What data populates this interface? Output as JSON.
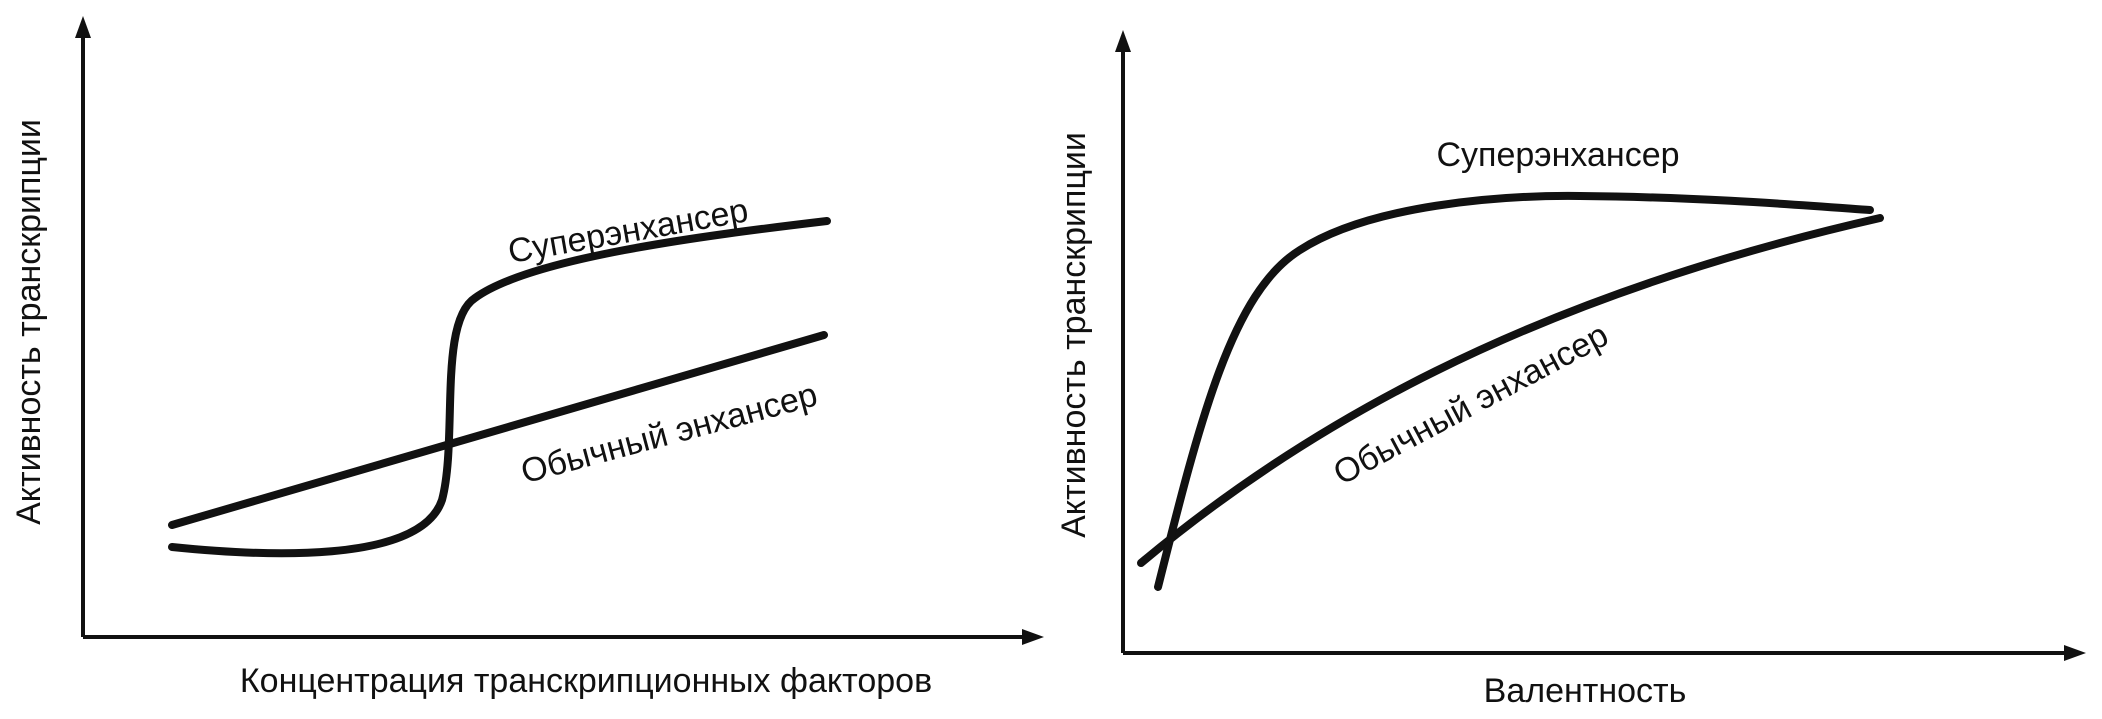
{
  "left": {
    "y_axis_label": "Активность транскрипции",
    "x_axis_label": "Концентрация транскрипционных факторов",
    "curves": [
      {
        "label": "Суперэнхансер"
      },
      {
        "label": "Обычный энхансер"
      }
    ]
  },
  "right": {
    "y_axis_label": "Активность транскрипции",
    "x_axis_label": "Валентность",
    "curves": [
      {
        "label": "Суперэнхансер"
      },
      {
        "label": "Обычный энхансер"
      }
    ]
  }
}
